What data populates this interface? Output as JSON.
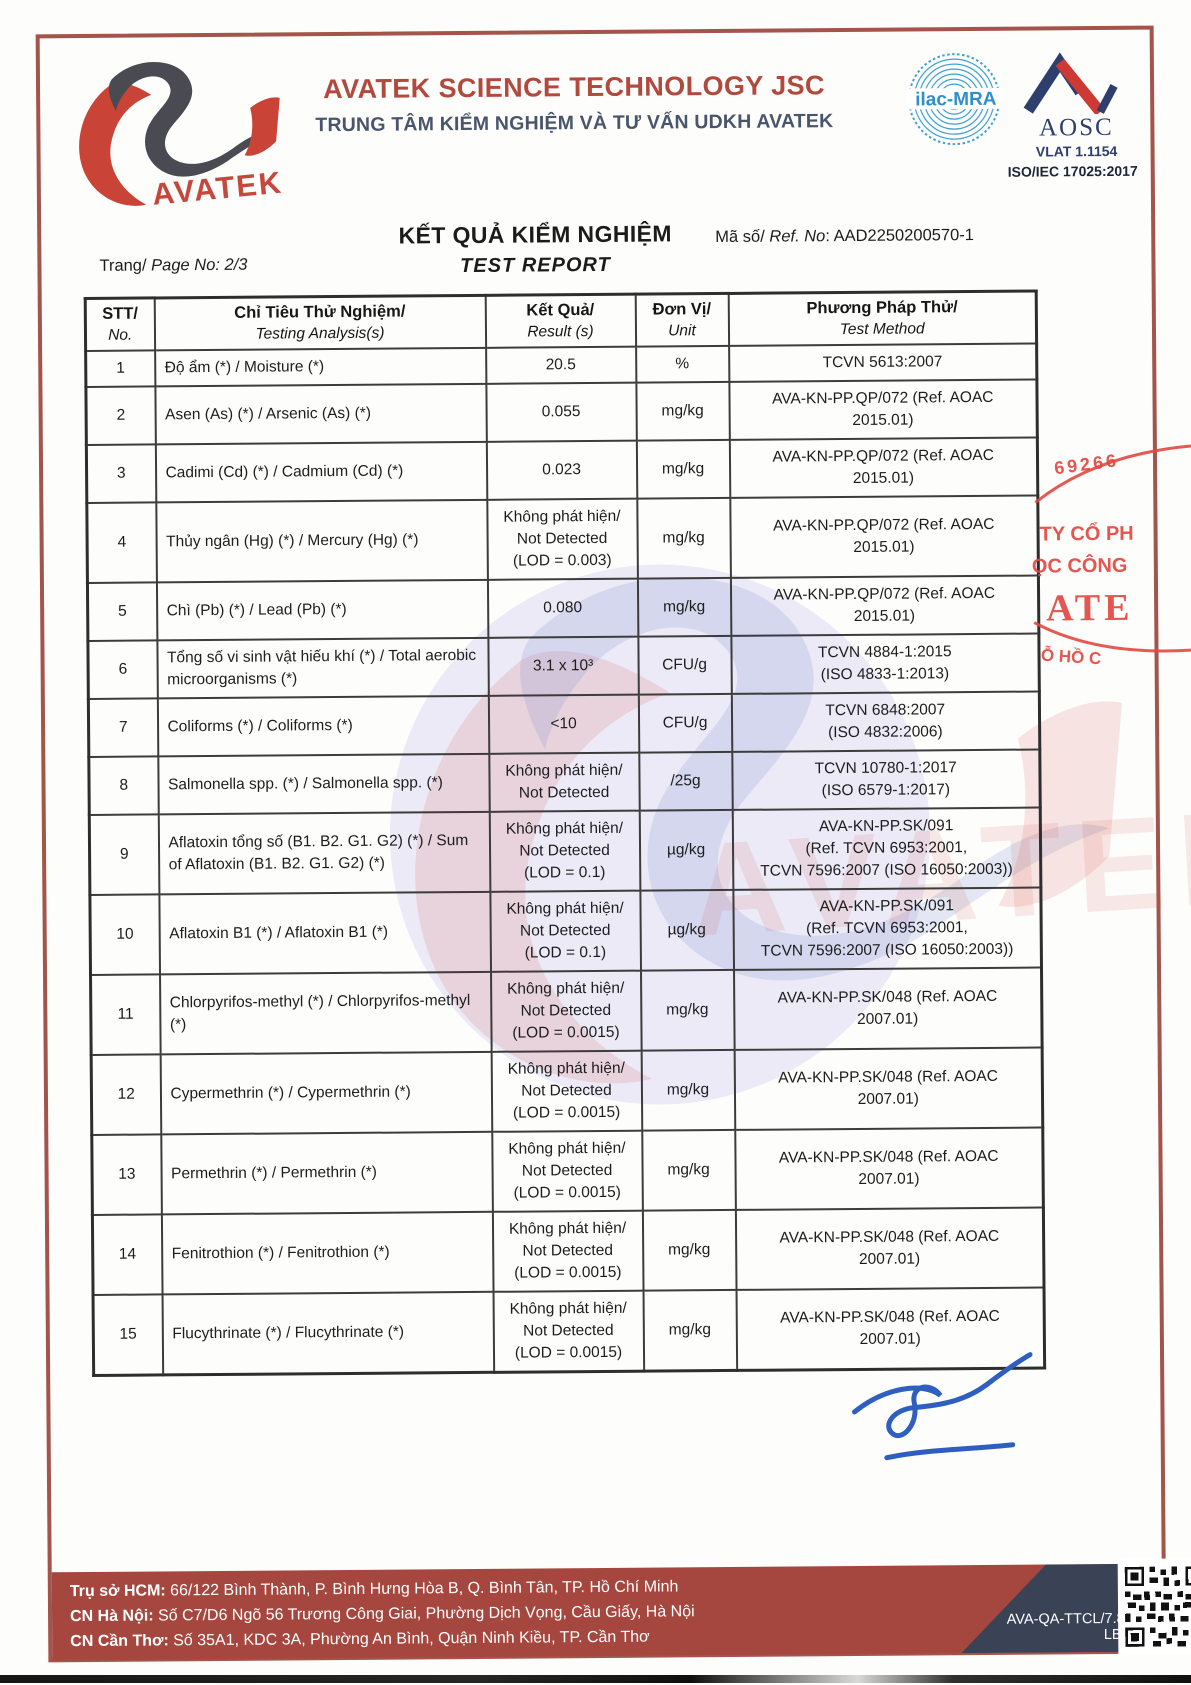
{
  "header": {
    "logo_text": "AVATEK",
    "company_name": "AVATEK SCIENCE TECHNOLOGY JSC",
    "company_sub": "TRUNG TÂM KIỂM NGHIỆM VÀ TƯ VẤN UDKH AVATEK",
    "ilac_text": "ilac-MRA",
    "aosc_text": "AOSC",
    "aosc_vlat": "VLAT 1.1154",
    "aosc_iso": "ISO/IEC 17025:2017"
  },
  "page": {
    "trang_vi": "Trang/",
    "trang_en": " Page No: 2/3",
    "title_vi": "KẾT QUẢ KIỂM NGHIỆM",
    "title_en": "TEST REPORT",
    "ref_vi": "Mã số/",
    "ref_en": " Ref. No",
    "ref_value": ": AAD2250200570-1"
  },
  "table": {
    "headers": [
      {
        "vi": "STT/",
        "en": "No."
      },
      {
        "vi": "Chỉ Tiêu Thử Nghiệm/",
        "en": "Testing Analysis(s)"
      },
      {
        "vi": "Kết Quả/",
        "en": "Result (s)"
      },
      {
        "vi": "Đơn Vị/",
        "en": "Unit"
      },
      {
        "vi": "Phương Pháp Thử/",
        "en": "Test Method"
      }
    ],
    "rows": [
      {
        "no": "1",
        "name": "Độ ẩm (*) / Moisture (*)",
        "result": [
          "20.5"
        ],
        "unit": "%",
        "method": [
          "TCVN 5613:2007"
        ]
      },
      {
        "no": "2",
        "name": "Asen (As) (*) / Arsenic (As) (*)",
        "result": [
          "0.055"
        ],
        "unit": "mg/kg",
        "method": [
          "AVA-KN-PP.QP/072 (Ref. AOAC",
          "2015.01)"
        ]
      },
      {
        "no": "3",
        "name": "Cadimi (Cd) (*) / Cadmium (Cd) (*)",
        "result": [
          "0.023"
        ],
        "unit": "mg/kg",
        "method": [
          "AVA-KN-PP.QP/072 (Ref. AOAC",
          "2015.01)"
        ]
      },
      {
        "no": "4",
        "name": "Thủy ngân (Hg) (*) / Mercury (Hg) (*)",
        "result": [
          "Không phát hiện/",
          "Not Detected",
          "(LOD = 0.003)"
        ],
        "unit": "mg/kg",
        "method": [
          "AVA-KN-PP.QP/072 (Ref. AOAC",
          "2015.01)"
        ]
      },
      {
        "no": "5",
        "name": "Chì (Pb) (*) / Lead (Pb) (*)",
        "result": [
          "0.080"
        ],
        "unit": "mg/kg",
        "method": [
          "AVA-KN-PP.QP/072 (Ref. AOAC",
          "2015.01)"
        ]
      },
      {
        "no": "6",
        "name": "Tổng số vi sinh vật hiếu khí (*) / Total aerobic microorganisms (*)",
        "result": [
          "3.1 x 10³"
        ],
        "unit": "CFU/g",
        "method": [
          "TCVN 4884-1:2015",
          "(ISO 4833-1:2013)"
        ]
      },
      {
        "no": "7",
        "name": "Coliforms (*) / Coliforms (*)",
        "result": [
          "<10"
        ],
        "unit": "CFU/g",
        "method": [
          "TCVN 6848:2007",
          "(ISO 4832:2006)"
        ]
      },
      {
        "no": "8",
        "name": "Salmonella spp. (*) / Salmonella spp. (*)",
        "result": [
          "Không phát hiện/",
          "Not Detected"
        ],
        "unit": "/25g",
        "method": [
          "TCVN 10780-1:2017",
          "(ISO 6579-1:2017)"
        ]
      },
      {
        "no": "9",
        "name": "Aflatoxin tổng số (B1. B2. G1. G2) (*) / Sum of Aflatoxin (B1. B2. G1. G2) (*)",
        "result": [
          "Không phát hiện/",
          "Not Detected",
          "(LOD = 0.1)"
        ],
        "unit": "µg/kg",
        "method": [
          "AVA-KN-PP.SK/091",
          "(Ref. TCVN 6953:2001,",
          "TCVN 7596:2007 (ISO 16050:2003))"
        ]
      },
      {
        "no": "10",
        "name": "Aflatoxin B1 (*) / Aflatoxin B1 (*)",
        "result": [
          "Không phát hiện/",
          "Not Detected",
          "(LOD = 0.1)"
        ],
        "unit": "µg/kg",
        "method": [
          "AVA-KN-PP.SK/091",
          "(Ref. TCVN 6953:2001,",
          "TCVN 7596:2007 (ISO 16050:2003))"
        ]
      },
      {
        "no": "11",
        "name": "Chlorpyrifos-methyl (*) / Chlorpyrifos-methyl (*)",
        "result": [
          "Không phát hiện/",
          "Not Detected",
          "(LOD = 0.0015)"
        ],
        "unit": "mg/kg",
        "method": [
          "AVA-KN-PP.SK/048 (Ref. AOAC",
          "2007.01)"
        ]
      },
      {
        "no": "12",
        "name": "Cypermethrin (*) / Cypermethrin (*)",
        "result": [
          "Không phát hiện/",
          "Not Detected",
          "(LOD = 0.0015)"
        ],
        "unit": "mg/kg",
        "method": [
          "AVA-KN-PP.SK/048 (Ref. AOAC",
          "2007.01)"
        ]
      },
      {
        "no": "13",
        "name": "Permethrin (*) / Permethrin (*)",
        "result": [
          "Không phát hiện/",
          "Not Detected",
          "(LOD = 0.0015)"
        ],
        "unit": "mg/kg",
        "method": [
          "AVA-KN-PP.SK/048 (Ref. AOAC",
          "2007.01)"
        ]
      },
      {
        "no": "14",
        "name": "Fenitrothion (*) / Fenitrothion (*)",
        "result": [
          "Không phát hiện/",
          "Not Detected",
          "(LOD = 0.0015)"
        ],
        "unit": "mg/kg",
        "method": [
          "AVA-KN-PP.SK/048 (Ref. AOAC",
          "2007.01)"
        ]
      },
      {
        "no": "15",
        "name": "Flucythrinate (*) / Flucythrinate (*)",
        "result": [
          "Không phát hiện/",
          "Not Detected",
          "(LOD = 0.0015)"
        ],
        "unit": "mg/kg",
        "method": [
          "AVA-KN-PP.SK/048 (Ref. AOAC",
          "2007.01)"
        ]
      }
    ]
  },
  "stamp": {
    "lines": [
      "69266",
      "TY CỔ PH",
      "ỌC CÔNG",
      "ATE",
      "Ỗ HỒ C"
    ]
  },
  "watermark": {
    "text": "AVATEK"
  },
  "footer": {
    "lines": [
      {
        "label": "Trụ sở HCM:",
        "text": " 66/122 Bình Thành, P. Bình Hưng Hòa B, Q. Bình Tân, TP. Hồ Chí Minh"
      },
      {
        "label": "CN Hà Nội:",
        "text": " Số C7/D6 Ngõ 56 Trương Công Giai, Phường Dịch Vọng, Cầu Giấy, Hà Nội"
      },
      {
        "label": "CN Cần Thơ:",
        "text": " Số 35A1, KDC 3A, Phường An Bình, Quận Ninh Kiều, TP. Cần Thơ"
      }
    ],
    "doc_code": "AVA-QA-TTCL/7.8/F.01 LBH: 02"
  },
  "colors": {
    "frame": "#a3544b",
    "brand_red": "#b2493d",
    "brand_navy": "#49556a",
    "footer_band": "#a6473f",
    "footer_tag": "#3a4256",
    "stamp_red": "#e24840",
    "signature_blue": "#2e5fc0",
    "ilac_blue": "#3fa0d6"
  }
}
